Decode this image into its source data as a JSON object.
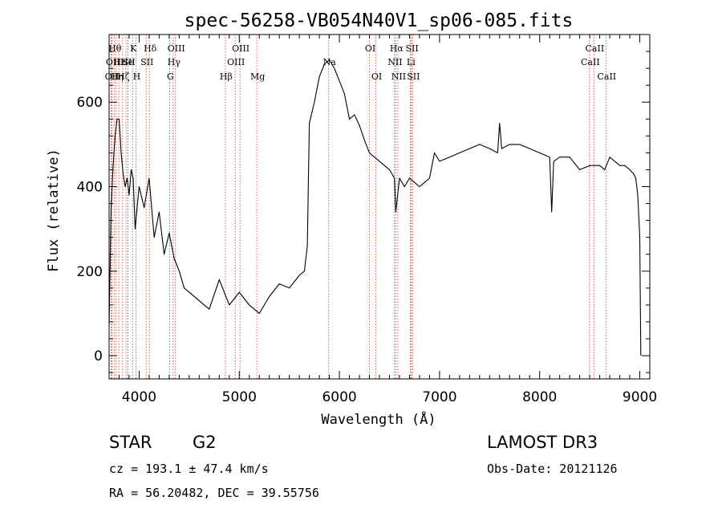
{
  "chart_data": {
    "type": "line",
    "title": "spec-56258-VB054N40V1_sp06-085.fits",
    "xlabel": "Wavelength (Å)",
    "ylabel": "Flux (relative)",
    "xlim": [
      3700,
      9100
    ],
    "ylim": [
      -55,
      760
    ],
    "x_ticks": [
      4000,
      5000,
      6000,
      7000,
      8000,
      9000
    ],
    "y_ticks": [
      0,
      200,
      400,
      600
    ],
    "series": [
      {
        "name": "spectrum",
        "x": [
          3700,
          3720,
          3740,
          3760,
          3780,
          3800,
          3820,
          3840,
          3860,
          3880,
          3900,
          3920,
          3940,
          3960,
          3980,
          4000,
          4050,
          4100,
          4150,
          4200,
          4250,
          4300,
          4350,
          4400,
          4450,
          4500,
          4600,
          4700,
          4800,
          4900,
          5000,
          5100,
          5200,
          5300,
          5400,
          5500,
          5600,
          5650,
          5680,
          5700,
          5750,
          5800,
          5850,
          5900,
          5950,
          6000,
          6050,
          6100,
          6150,
          6200,
          6250,
          6300,
          6350,
          6400,
          6450,
          6500,
          6550,
          6563,
          6600,
          6650,
          6700,
          6750,
          6800,
          6850,
          6900,
          6950,
          7000,
          7100,
          7200,
          7300,
          7400,
          7500,
          7580,
          7600,
          7620,
          7700,
          7800,
          7900,
          8000,
          8100,
          8120,
          8140,
          8200,
          8300,
          8400,
          8500,
          8550,
          8600,
          8650,
          8700,
          8750,
          8800,
          8850,
          8900,
          8940,
          8960,
          8980,
          9000,
          9010
        ],
        "values": [
          70,
          350,
          450,
          520,
          560,
          560,
          480,
          430,
          400,
          420,
          380,
          440,
          420,
          300,
          350,
          400,
          350,
          420,
          280,
          340,
          240,
          290,
          230,
          200,
          160,
          150,
          130,
          110,
          180,
          120,
          150,
          120,
          100,
          140,
          170,
          160,
          190,
          200,
          260,
          550,
          600,
          660,
          690,
          700,
          680,
          650,
          620,
          560,
          570,
          545,
          510,
          480,
          470,
          460,
          450,
          440,
          420,
          340,
          420,
          400,
          420,
          410,
          400,
          410,
          420,
          480,
          460,
          470,
          480,
          490,
          500,
          490,
          480,
          550,
          490,
          500,
          500,
          490,
          480,
          470,
          340,
          460,
          470,
          470,
          440,
          450,
          450,
          450,
          440,
          470,
          460,
          450,
          450,
          440,
          430,
          420,
          380,
          280,
          0
        ]
      }
    ],
    "lines": [
      {
        "x": 3720,
        "label": "OII",
        "row": 2
      },
      {
        "x": 3730,
        "label": "OII",
        "row": 1
      },
      {
        "x": 3750,
        "label": "Hθ",
        "row": 0
      },
      {
        "x": 3770,
        "label": "Hη",
        "row": 2
      },
      {
        "x": 3797,
        "label": "Hε",
        "row": 1
      },
      {
        "x": 3835,
        "label": "Hζ",
        "row": 2
      },
      {
        "x": 3869,
        "label": "He",
        "row": 1
      },
      {
        "x": 3889,
        "label": "SII",
        "row": 1
      },
      {
        "x": 3934,
        "label": "K",
        "row": 0
      },
      {
        "x": 3968,
        "label": "H",
        "row": 2
      },
      {
        "x": 4070,
        "label": "SII",
        "row": 1
      },
      {
        "x": 4102,
        "label": "Hδ",
        "row": 0
      },
      {
        "x": 4304,
        "label": "G",
        "row": 2
      },
      {
        "x": 4340,
        "label": "Hγ",
        "row": 1
      },
      {
        "x": 4363,
        "label": "OIII",
        "row": 0
      },
      {
        "x": 4861,
        "label": "Hβ",
        "row": 2
      },
      {
        "x": 4959,
        "label": "OIII",
        "row": 1
      },
      {
        "x": 5007,
        "label": "OIII",
        "row": 0
      },
      {
        "x": 5175,
        "label": "Mg",
        "row": 2
      },
      {
        "x": 5893,
        "label": "Na",
        "row": 1
      },
      {
        "x": 6300,
        "label": "OI",
        "row": 0
      },
      {
        "x": 6364,
        "label": "OI",
        "row": 2
      },
      {
        "x": 6548,
        "label": "NII",
        "row": 1
      },
      {
        "x": 6563,
        "label": "Hα",
        "row": 0
      },
      {
        "x": 6584,
        "label": "NII",
        "row": 2
      },
      {
        "x": 6707,
        "label": "Li",
        "row": 1
      },
      {
        "x": 6717,
        "label": "SII",
        "row": 0
      },
      {
        "x": 6731,
        "label": "SII",
        "row": 2
      },
      {
        "x": 8498,
        "label": "CaII",
        "row": 1
      },
      {
        "x": 8542,
        "label": "CaII",
        "row": 0
      },
      {
        "x": 8662,
        "label": "CaII",
        "row": 2
      }
    ]
  },
  "info": {
    "class": "STAR",
    "subclass": "G2",
    "survey": "LAMOST DR3",
    "cz": "cz = 193.1 ± 47.4 km/s",
    "obs_date": "Obs-Date: 20121126",
    "coords": "RA =  56.20482, DEC =  39.55756"
  }
}
